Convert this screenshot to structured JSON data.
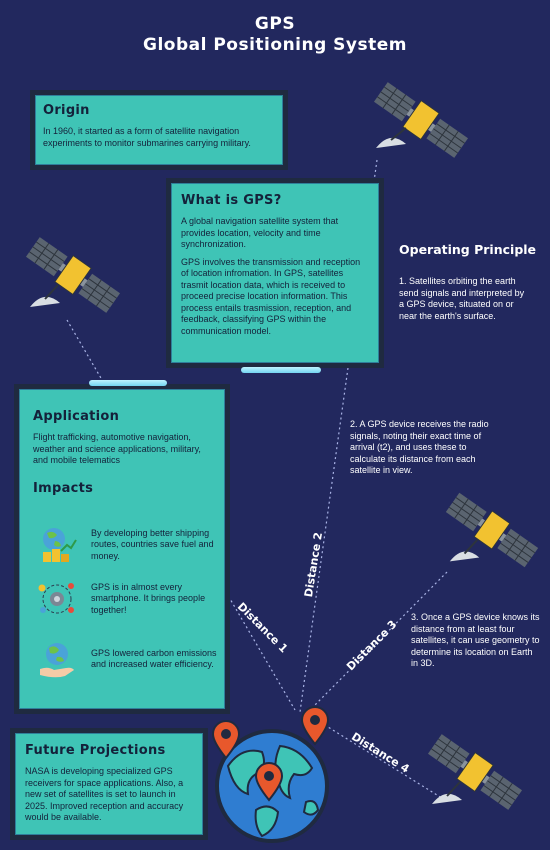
{
  "header": {
    "title_line1": "GPS",
    "title_line2": "Global Positioning System"
  },
  "origin": {
    "heading": "Origin",
    "text": "In 1960, it started as a form of satellite navigation experiments to monitor submarines carrying military."
  },
  "what_is_gps": {
    "heading": "What is GPS?",
    "paragraph1": "A global navigation satellite system that provides location, velocity and time synchronization.",
    "paragraph2": "GPS involves the transmission and reception of location infromation. In GPS, satellites trasmit location data, which is received to proceed precise location information. This process entails trasmission, reception, and feedback, classifying GPS within the communication model."
  },
  "operating_principle": {
    "heading": "Operating Principle",
    "step1": "1. Satellites orbiting the earth send signals and interpreted by a GPS device, situated on or near the earth's surface.",
    "step2": "2. A GPS device receives the radio signals, noting their exact time of arrival (t2), and uses these to calculate its distance from each satellite in view.",
    "step3": "3. Once a GPS device knows its distance from at least four satellites, it can use geometry to determine its location on Earth in 3D."
  },
  "application": {
    "heading": "Application",
    "text": "Flight trafficking, automotive navigation, weather and science applications, military, and mobile telematics"
  },
  "impacts": {
    "heading": "Impacts",
    "items": [
      {
        "icon": "money-globe-icon",
        "text": "By developing better shipping routes, countries save fuel and money."
      },
      {
        "icon": "network-people-icon",
        "text": "GPS is in almost every smartphone. It brings people together!"
      },
      {
        "icon": "earth-hand-icon",
        "text": "GPS lowered carbon emissions and increased water efficiency."
      }
    ]
  },
  "future": {
    "heading": "Future Projections",
    "text": "NASA is developing specialized GPS receivers for space applications. Also, a new set of satellites is set to launch in 2025. Improved reception and accuracy would be available."
  },
  "distances": {
    "d1": "Distance 1",
    "d2": "Distance 2",
    "d3": "Distance 3",
    "d4": "Distance 4"
  },
  "colors": {
    "background": "#22285e",
    "panel": "#3fc4b6",
    "frame": "#1f2a40",
    "accent": "#e8582c"
  }
}
